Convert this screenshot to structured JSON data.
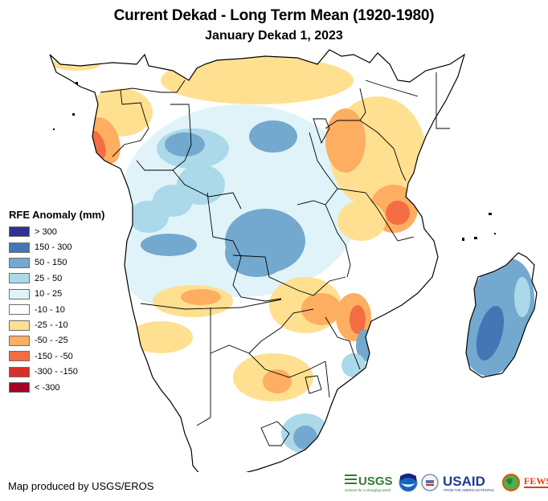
{
  "header": {
    "title": "Current Dekad - Long Term Mean (1920-1980)",
    "subtitle": "January Dekad 1, 2023"
  },
  "legend": {
    "title": "RFE Anomaly (mm)",
    "items": [
      {
        "label": "> 300",
        "color": "#2e3192"
      },
      {
        "label": "150 - 300",
        "color": "#4575b4"
      },
      {
        "label": "50 - 150",
        "color": "#74a9cf"
      },
      {
        "label": "25 - 50",
        "color": "#abd9e9"
      },
      {
        "label": "10 - 25",
        "color": "#e0f3f8"
      },
      {
        "label": "-10 - 10",
        "color": "#ffffff"
      },
      {
        "label": "-25 - -10",
        "color": "#fee090"
      },
      {
        "label": "-50 - -25",
        "color": "#fdae61"
      },
      {
        "label": "-150 - -50",
        "color": "#f46d43"
      },
      {
        "label": "-300 - -150",
        "color": "#d73027"
      },
      {
        "label": "< -300",
        "color": "#a50026"
      }
    ]
  },
  "footer": {
    "credit": "Map produced by USGS/EROS",
    "logos": [
      {
        "name": "USGS",
        "tagline": "science for a changing world"
      },
      {
        "name": "NOAA"
      },
      {
        "name": "USAID",
        "tagline": "FROM THE AMERICAN PEOPLE"
      },
      {
        "name": "FEWS NET"
      }
    ]
  },
  "map": {
    "region": "Central and Southern Africa",
    "variable": "RFE Anomaly (mm)"
  }
}
